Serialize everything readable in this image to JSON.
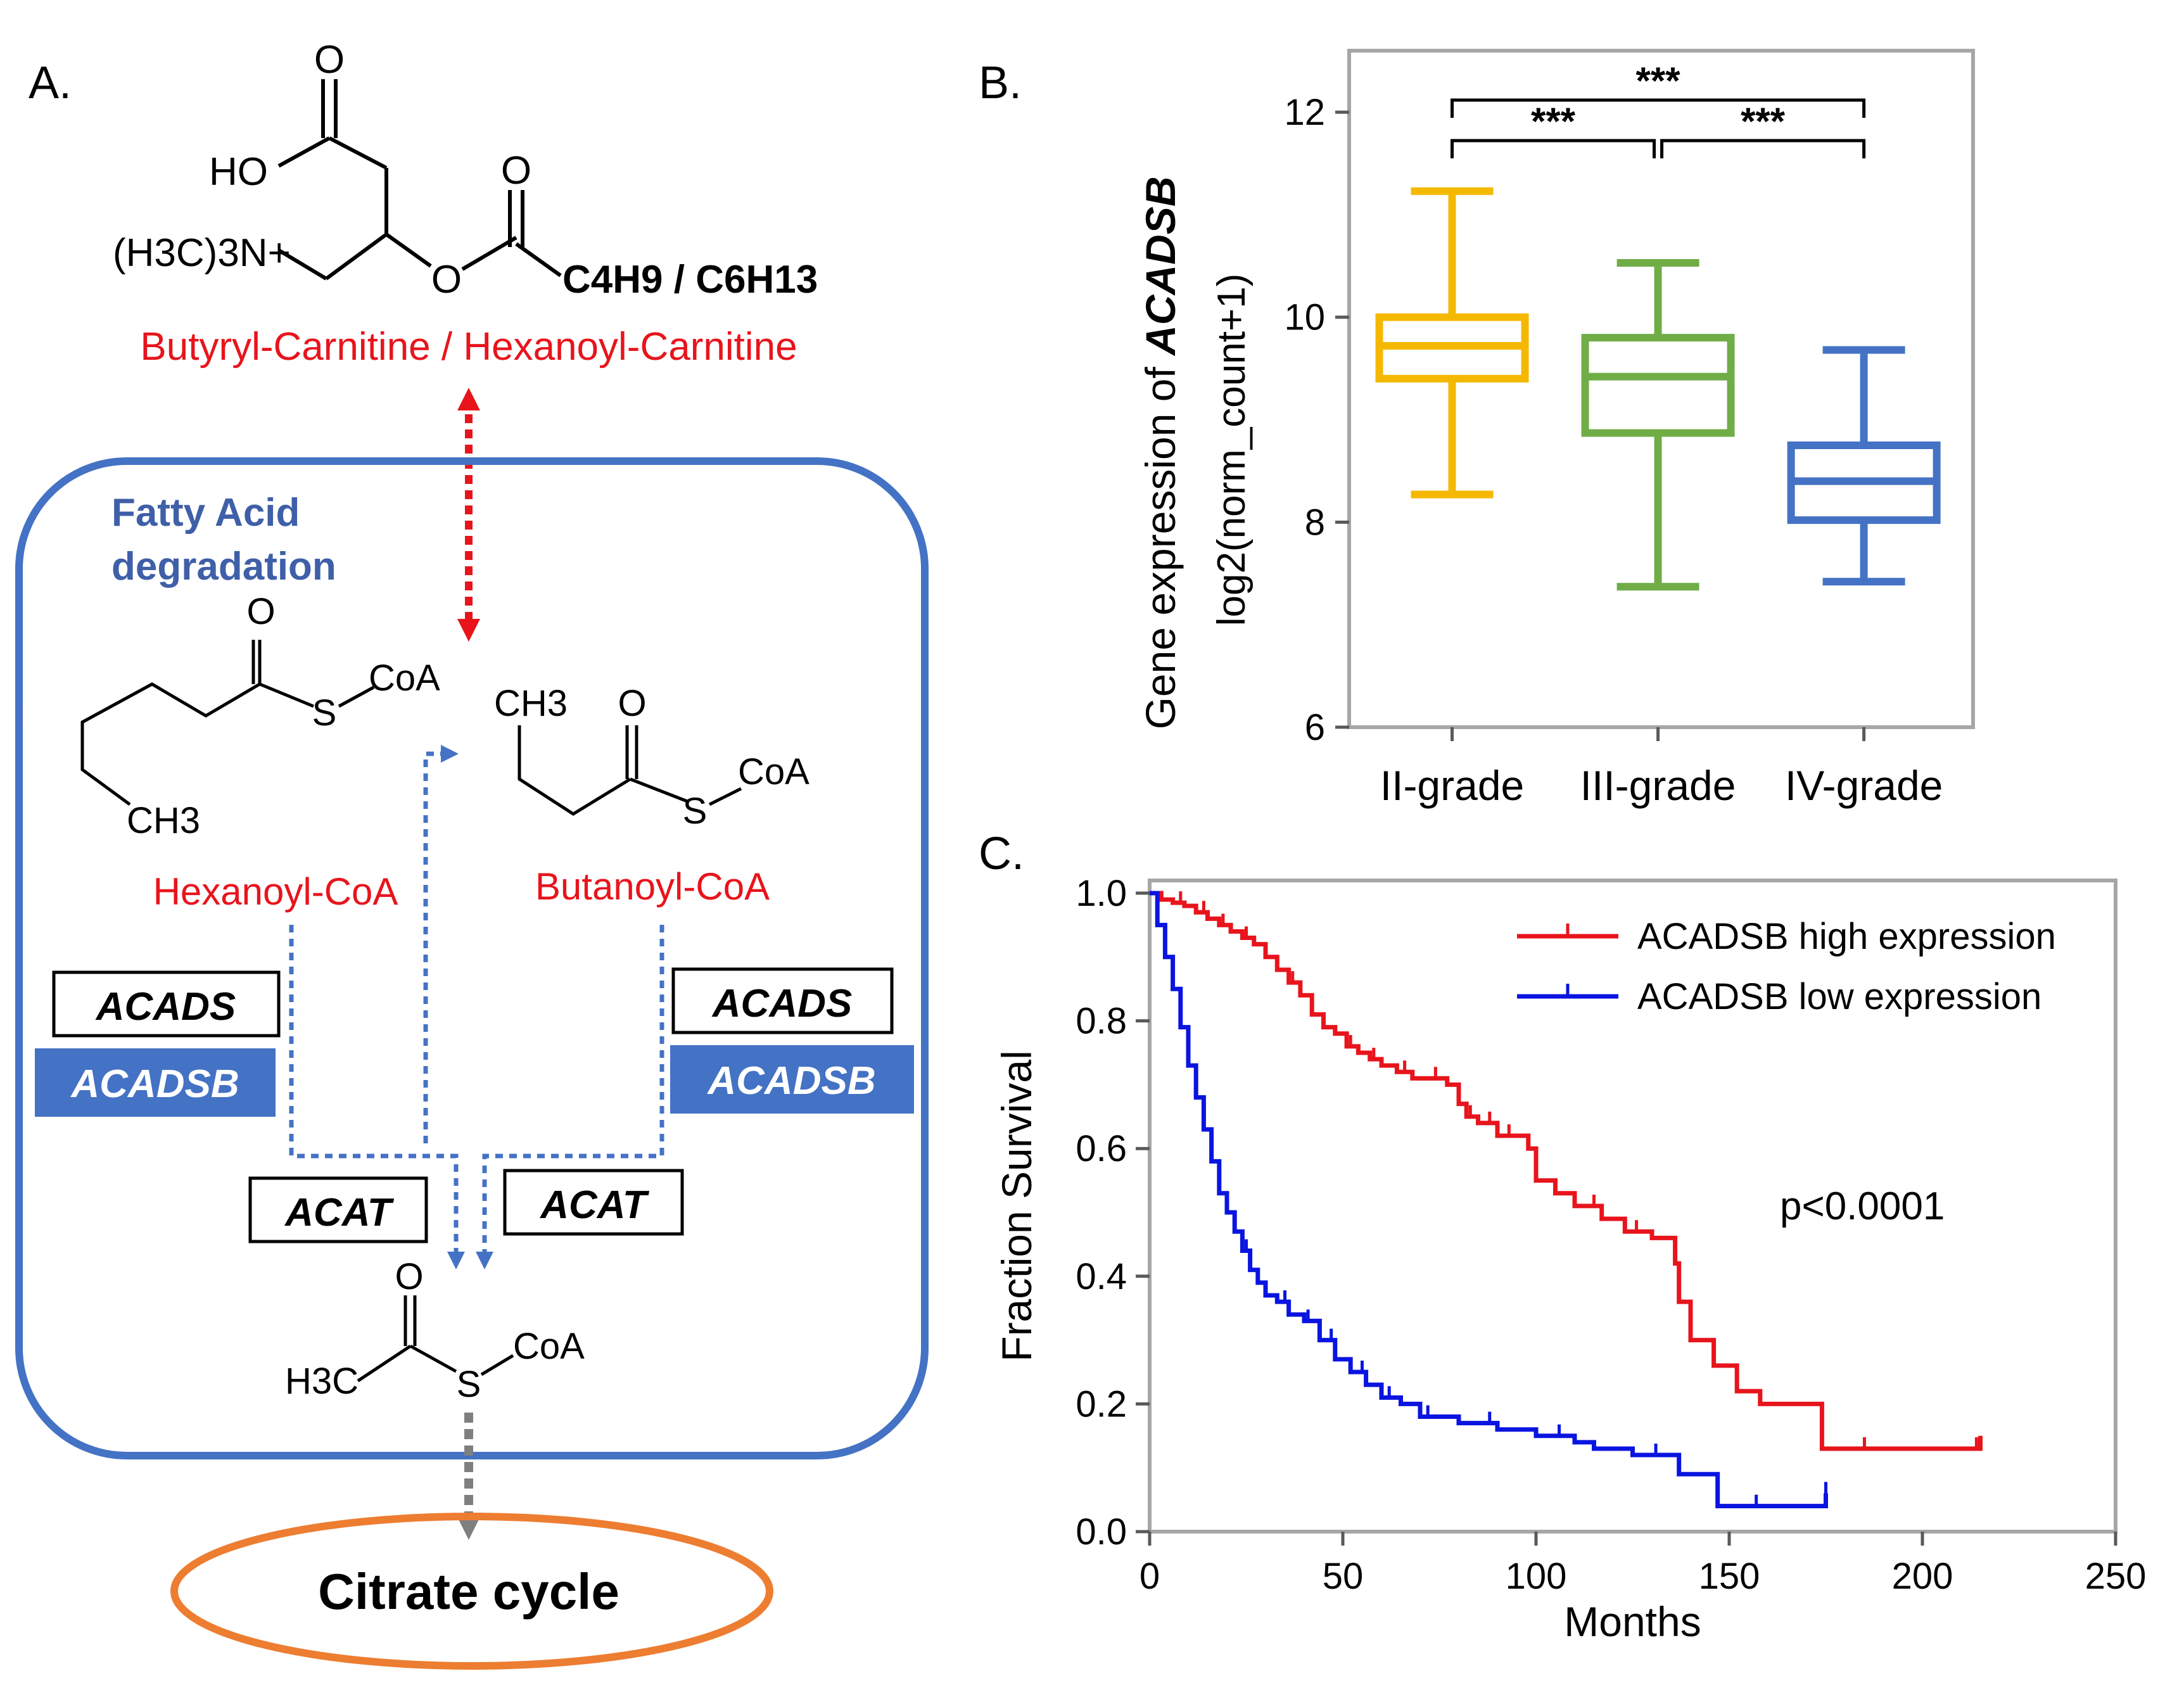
{
  "panel_a": {
    "label": "A.",
    "carnitine_label": "Butyryl-Carnitine / Hexanoyl-Carnitine",
    "carnitine_o_top": "O",
    "carnitine_ho": "HO",
    "carnitine_o_mid": "O",
    "carnitine_o_ring": "O",
    "carnitine_amine": "(H3C)3N+",
    "carnitine_chain": "C4H9 / C6H13",
    "box_title_1": "Fatty Acid",
    "box_title_2": "degradation",
    "hexanoyl_o": "O",
    "hexanoyl_s": "S",
    "hexanoyl_coa": "CoA",
    "hexanoyl_ch3": "CH3",
    "hexanoyl_label": "Hexanoyl-CoA",
    "butanoyl_o": "O",
    "butanoyl_ch3": "CH3",
    "butanoyl_s": "S",
    "butanoyl_coa": "CoA",
    "butanoyl_label": "Butanoyl-CoA",
    "acetyl_o": "O",
    "acetyl_s": "S",
    "acetyl_coa": "CoA",
    "acetyl_h3c": "H3C",
    "enzyme_acads": "ACADS",
    "enzyme_acadsb": "ACADSB",
    "enzyme_acat": "ACAT",
    "citrate_cycle": "Citrate cycle",
    "colors": {
      "blue": "#4472C4",
      "red": "#E8141C",
      "orange": "#ED7D31",
      "gray": "#7F7F7F"
    }
  },
  "panel_b": {
    "label": "B.",
    "ylabel_prefix": "Gene expression of ",
    "ylabel_gene": "ACADSB",
    "ylabel_line2": "log2(norm_count+1)",
    "significance": "***"
  },
  "panel_c": {
    "label": "C.",
    "p_value": "p<0.0001"
  },
  "chart_data": [
    {
      "type": "box",
      "title": "",
      "ylabel": "Gene expression of ACADSB log2(norm_count+1)",
      "ylim": [
        6,
        12.6
      ],
      "yticks": [
        6,
        8,
        10,
        12
      ],
      "categories": [
        "II-grade",
        "III-grade",
        "IV-grade"
      ],
      "colors": [
        "#F5B800",
        "#70AD47",
        "#4472C4"
      ],
      "boxes": [
        {
          "min": 8.27,
          "q1": 9.4,
          "median": 9.72,
          "q3": 10.0,
          "max": 11.23
        },
        {
          "min": 7.37,
          "q1": 8.87,
          "median": 9.42,
          "q3": 9.8,
          "max": 10.53
        },
        {
          "min": 7.42,
          "q1": 8.02,
          "median": 8.4,
          "q3": 8.75,
          "max": 9.68
        }
      ],
      "comparisons": [
        {
          "from": 0,
          "to": 1,
          "label": "***",
          "level": 1
        },
        {
          "from": 1,
          "to": 2,
          "label": "***",
          "level": 1
        },
        {
          "from": 0,
          "to": 2,
          "label": "***",
          "level": 2
        }
      ]
    },
    {
      "type": "line",
      "subtype": "kaplan-meier",
      "title": "",
      "xlabel": "Months",
      "ylabel": "Fraction Survival",
      "xlim": [
        0,
        250
      ],
      "ylim": [
        0,
        1.05
      ],
      "xticks": [
        0,
        50,
        100,
        150,
        200,
        250
      ],
      "yticks": [
        0.0,
        0.2,
        0.4,
        0.6,
        0.8,
        1.0
      ],
      "series": [
        {
          "name": "ACADSB high expression",
          "color": "#E8141C",
          "x": [
            0,
            3,
            6,
            9,
            12,
            15,
            18,
            21,
            24,
            27,
            30,
            33,
            36,
            39,
            42,
            45,
            48,
            51,
            54,
            57,
            60,
            64,
            68,
            72,
            77,
            80,
            82,
            85,
            90,
            98,
            100,
            105,
            110,
            117,
            123,
            130,
            136,
            137,
            140,
            146,
            152,
            158,
            166,
            174,
            185,
            200,
            215
          ],
          "y": [
            1.0,
            0.99,
            0.985,
            0.98,
            0.97,
            0.96,
            0.95,
            0.94,
            0.93,
            0.92,
            0.9,
            0.88,
            0.86,
            0.84,
            0.81,
            0.79,
            0.78,
            0.76,
            0.75,
            0.74,
            0.73,
            0.72,
            0.71,
            0.71,
            0.7,
            0.67,
            0.65,
            0.64,
            0.62,
            0.6,
            0.55,
            0.53,
            0.51,
            0.49,
            0.47,
            0.46,
            0.42,
            0.36,
            0.3,
            0.26,
            0.22,
            0.2,
            0.2,
            0.13,
            0.13,
            0.13,
            0.15
          ],
          "censor_x": [
            8,
            14,
            19,
            25,
            30,
            37,
            45,
            52,
            58,
            66,
            74,
            83,
            88,
            93,
            115,
            126,
            185,
            214
          ]
        },
        {
          "name": "ACADSB low expression",
          "color": "#0A14E0",
          "x": [
            0,
            2,
            4,
            6,
            8,
            10,
            12,
            14,
            16,
            18,
            20,
            22,
            24,
            26,
            28,
            30,
            33,
            36,
            40,
            44,
            48,
            52,
            56,
            60,
            65,
            70,
            80,
            90,
            100,
            110,
            115,
            125,
            137,
            147,
            160,
            175
          ],
          "y": [
            1.0,
            0.95,
            0.9,
            0.85,
            0.79,
            0.73,
            0.68,
            0.63,
            0.58,
            0.53,
            0.5,
            0.47,
            0.44,
            0.41,
            0.39,
            0.37,
            0.36,
            0.34,
            0.33,
            0.3,
            0.27,
            0.25,
            0.23,
            0.21,
            0.2,
            0.18,
            0.17,
            0.16,
            0.15,
            0.14,
            0.13,
            0.12,
            0.09,
            0.04,
            0.04,
            0.06
          ],
          "censor_x": [
            25,
            35,
            41,
            47,
            55,
            62,
            72,
            88,
            106,
            131,
            157,
            175
          ]
        }
      ]
    }
  ]
}
